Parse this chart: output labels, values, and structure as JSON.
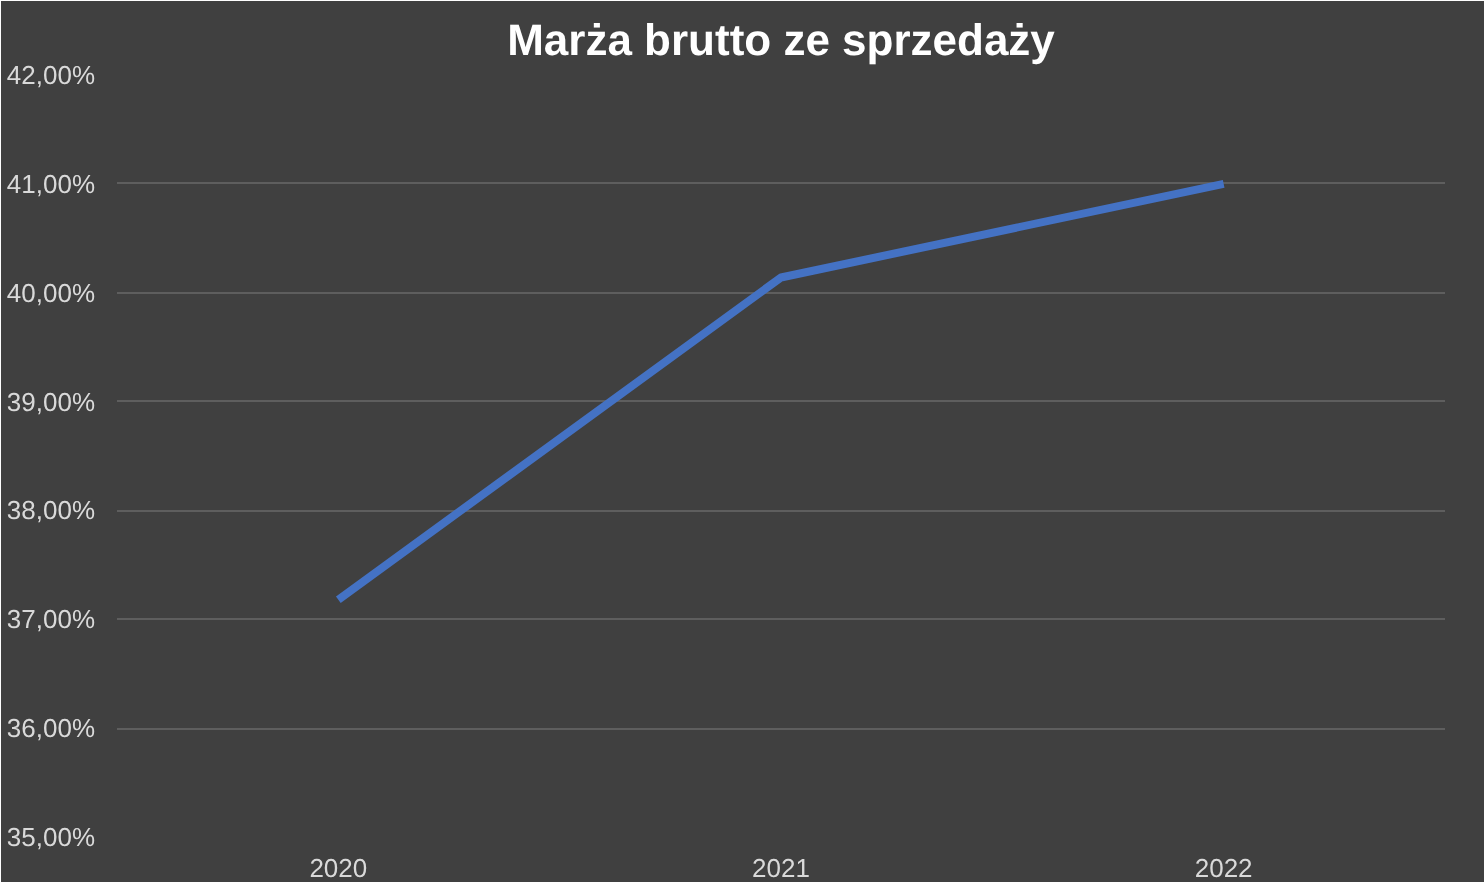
{
  "chart_data": {
    "type": "line",
    "title": "Marża brutto ze sprzedaży",
    "categories": [
      "2020",
      "2021",
      "2022"
    ],
    "series": [
      {
        "color": "#4472c4",
        "values": [
          37.18,
          40.14,
          41.0
        ]
      }
    ],
    "ylim": [
      35,
      42
    ],
    "yticks": [
      {
        "value": 35,
        "label": "35,00%"
      },
      {
        "value": 36,
        "label": "36,00%"
      },
      {
        "value": 37,
        "label": "37,00%"
      },
      {
        "value": 38,
        "label": "38,00%"
      },
      {
        "value": 39,
        "label": "39,00%"
      },
      {
        "value": 40,
        "label": "40,00%"
      },
      {
        "value": 41,
        "label": "41,00%"
      },
      {
        "value": 42,
        "label": "42,00%"
      }
    ],
    "grid": "y",
    "marker": "none",
    "line_style": "solid"
  }
}
